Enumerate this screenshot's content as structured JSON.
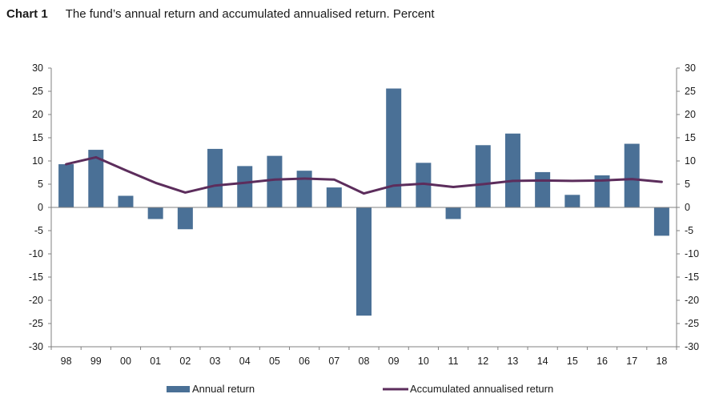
{
  "header": {
    "chart_label": "Chart 1",
    "title": "The fund’s annual return and accumulated annualised return. Percent"
  },
  "colors": {
    "bar": "#4a7096",
    "line": "#5c2d5c",
    "axis": "#808080"
  },
  "chart_data": {
    "type": "bar",
    "title": "The fund’s annual return and accumulated annualised return. Percent",
    "xlabel": "",
    "ylabel": "Percent",
    "ylim": [
      -30,
      30
    ],
    "y_ticks": [
      30,
      25,
      20,
      15,
      10,
      5,
      0,
      -5,
      -10,
      -15,
      -20,
      -25,
      -30
    ],
    "grid": false,
    "legend_position": "bottom",
    "categories": [
      "98",
      "99",
      "00",
      "01",
      "02",
      "03",
      "04",
      "05",
      "06",
      "07",
      "08",
      "09",
      "10",
      "11",
      "12",
      "13",
      "14",
      "15",
      "16",
      "17",
      "18"
    ],
    "series": [
      {
        "name": "Annual return",
        "type": "bar",
        "values": [
          9.3,
          12.4,
          2.5,
          -2.5,
          -4.7,
          12.6,
          8.9,
          11.1,
          7.9,
          4.3,
          -23.3,
          25.6,
          9.6,
          -2.5,
          13.4,
          15.9,
          7.6,
          2.7,
          6.9,
          13.7,
          -6.1
        ]
      },
      {
        "name": "Accumulated annualised return",
        "type": "line",
        "values": [
          9.3,
          10.8,
          8.0,
          5.3,
          3.2,
          4.7,
          5.3,
          6.0,
          6.2,
          6.0,
          3.0,
          4.7,
          5.1,
          4.4,
          5.0,
          5.7,
          5.8,
          5.7,
          5.8,
          6.1,
          5.5
        ]
      }
    ]
  }
}
